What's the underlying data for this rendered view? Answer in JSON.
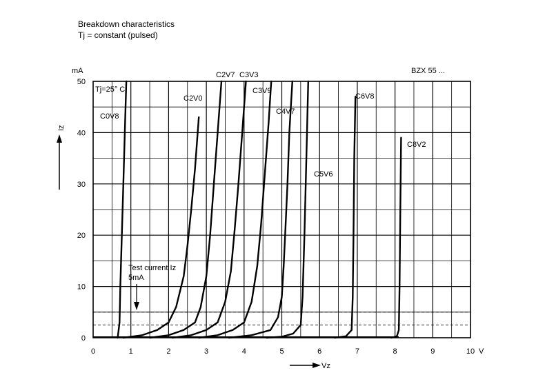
{
  "chart_data": {
    "type": "line",
    "title": "Breakdown characteristics",
    "subtitle": "Tj = constant (pulsed)",
    "device": "BZX 55 ...",
    "xlabel": "Vz",
    "x_unit": "V",
    "ylabel": "Iz",
    "y_unit": "mA",
    "xlim": [
      0,
      10
    ],
    "ylim": [
      0,
      50
    ],
    "x_ticks": [
      "0",
      "1",
      "2",
      "3",
      "4",
      "5",
      "6",
      "7",
      "8",
      "9",
      "10"
    ],
    "y_ticks": [
      "0",
      "10",
      "20",
      "30",
      "40",
      "50"
    ],
    "grid": true,
    "temperature_label": "Tj=25° C",
    "annotation": {
      "line1": "Test current Iz",
      "line2": "5mA"
    },
    "test_current_mA": 5,
    "reference_current_mA": 2.5,
    "series": [
      {
        "name": "C0V8",
        "points": [
          [
            0.65,
            0
          ],
          [
            0.7,
            3
          ],
          [
            0.72,
            10
          ],
          [
            0.76,
            20
          ],
          [
            0.8,
            30
          ],
          [
            0.84,
            40
          ],
          [
            0.88,
            50
          ]
        ]
      },
      {
        "name": "C2V0",
        "points": [
          [
            0.8,
            0
          ],
          [
            1.3,
            0.5
          ],
          [
            1.7,
            1.5
          ],
          [
            2.0,
            3
          ],
          [
            2.2,
            6
          ],
          [
            2.4,
            12
          ],
          [
            2.5,
            18
          ],
          [
            2.6,
            25
          ],
          [
            2.7,
            33
          ],
          [
            2.8,
            43
          ]
        ]
      },
      {
        "name": "C2V7",
        "points": [
          [
            1.5,
            0
          ],
          [
            2.0,
            0.5
          ],
          [
            2.4,
            1.5
          ],
          [
            2.7,
            3
          ],
          [
            2.85,
            6
          ],
          [
            3.0,
            12
          ],
          [
            3.1,
            20
          ],
          [
            3.2,
            30
          ],
          [
            3.3,
            40
          ],
          [
            3.4,
            50
          ]
        ]
      },
      {
        "name": "C3V3",
        "points": [
          [
            2.1,
            0
          ],
          [
            2.6,
            0.5
          ],
          [
            3.0,
            1.5
          ],
          [
            3.3,
            3
          ],
          [
            3.5,
            7
          ],
          [
            3.65,
            13
          ],
          [
            3.75,
            21
          ],
          [
            3.85,
            30
          ],
          [
            3.95,
            40
          ],
          [
            4.05,
            50
          ]
        ]
      },
      {
        "name": "C3V9",
        "points": [
          [
            2.8,
            0
          ],
          [
            3.3,
            0.5
          ],
          [
            3.7,
            1.5
          ],
          [
            4.0,
            3
          ],
          [
            4.2,
            7
          ],
          [
            4.35,
            14
          ],
          [
            4.45,
            22
          ],
          [
            4.55,
            32
          ],
          [
            4.65,
            42
          ],
          [
            4.72,
            50
          ]
        ]
      },
      {
        "name": "C4V7",
        "points": [
          [
            3.6,
            0
          ],
          [
            4.2,
            0.5
          ],
          [
            4.7,
            1.5
          ],
          [
            4.9,
            4
          ],
          [
            5.0,
            8
          ],
          [
            5.05,
            14
          ],
          [
            5.1,
            22
          ],
          [
            5.15,
            30
          ],
          [
            5.2,
            40
          ],
          [
            5.28,
            50
          ]
        ]
      },
      {
        "name": "C5V6",
        "points": [
          [
            4.6,
            0
          ],
          [
            5.0,
            0.2
          ],
          [
            5.3,
            0.8
          ],
          [
            5.5,
            2.5
          ],
          [
            5.55,
            8
          ],
          [
            5.6,
            20
          ],
          [
            5.65,
            35
          ],
          [
            5.7,
            50
          ]
        ]
      },
      {
        "name": "C6V8",
        "points": [
          [
            6.4,
            0
          ],
          [
            6.7,
            0.3
          ],
          [
            6.85,
            1.5
          ],
          [
            6.88,
            8
          ],
          [
            6.9,
            20
          ],
          [
            6.92,
            35
          ],
          [
            6.95,
            47
          ]
        ]
      },
      {
        "name": "C8V2",
        "points": [
          [
            7.9,
            0
          ],
          [
            8.05,
            0.3
          ],
          [
            8.1,
            1.5
          ],
          [
            8.12,
            10
          ],
          [
            8.14,
            25
          ],
          [
            8.16,
            39
          ]
        ]
      }
    ]
  }
}
